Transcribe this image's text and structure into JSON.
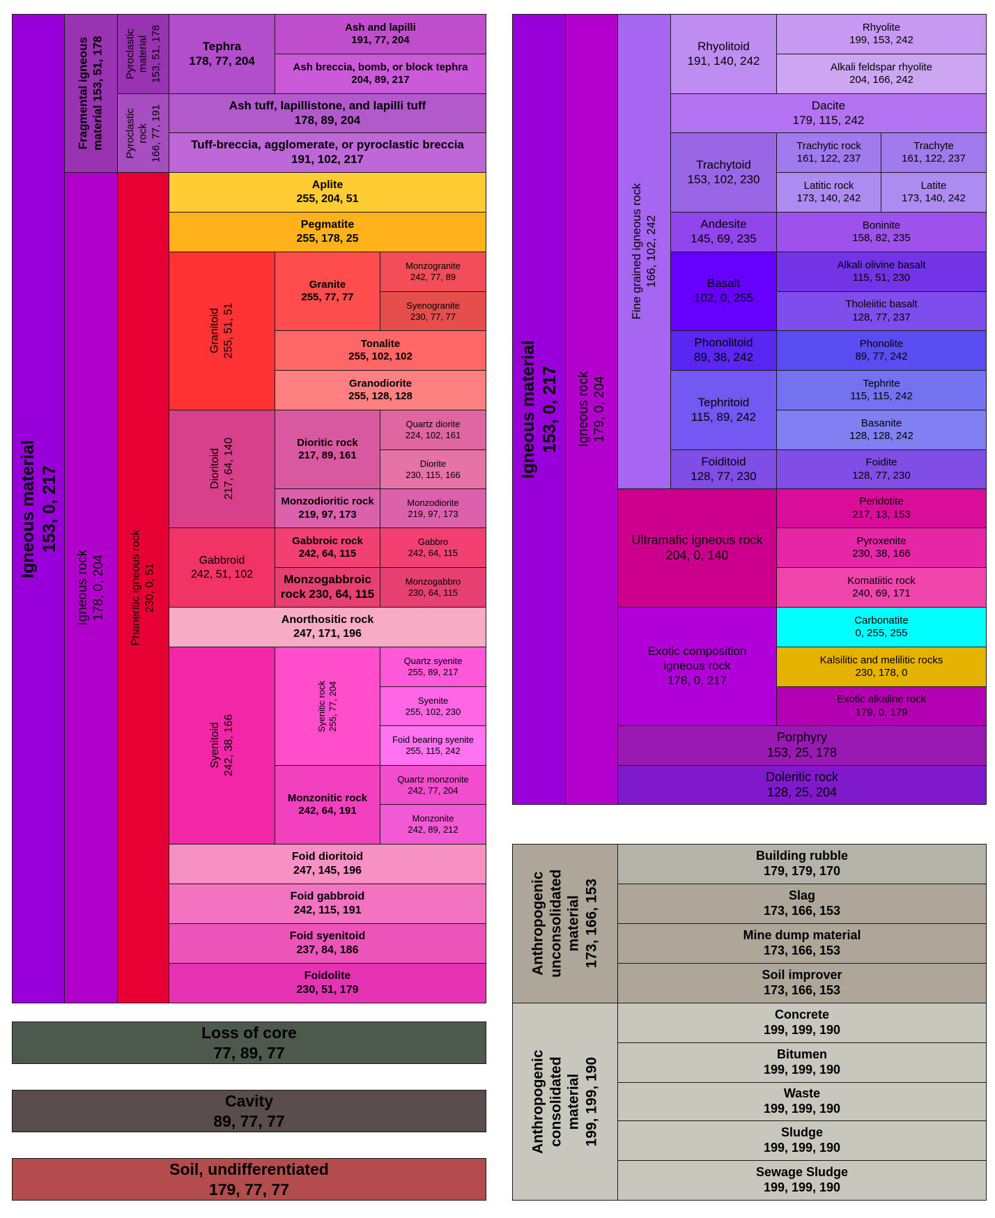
{
  "colors": {
    "border": "#1a1a1a",
    "background": "#ffffff"
  },
  "cells": [
    {
      "id": "igneous-material-left",
      "text": "Igneous material\n153, 0, 217",
      "color": "#9900D9"
    },
    {
      "id": "fragmental-igneous-material",
      "text": "Fragmental igneous\nmaterial 153, 51, 178",
      "color": "#9933B2"
    },
    {
      "id": "pyroclastic-material",
      "text": "Pyroclastic\nmaterial\n153, 51, 178",
      "color": "#9933B2"
    },
    {
      "id": "tephra",
      "text": "Tephra\n178, 77, 204",
      "color": "#B24DCC"
    },
    {
      "id": "ash-and-lapilli",
      "text": "Ash and lapilli\n191, 77, 204",
      "color": "#BF4DCC"
    },
    {
      "id": "ash-breccia",
      "text": "Ash breccia, bomb, or block tephra\n204, 89, 217",
      "color": "#CC59D9"
    },
    {
      "id": "pyroclastic-rock",
      "text": "Pyroclastic\nrock\n166, 77, 191",
      "color": "#A64DBF"
    },
    {
      "id": "ash-tuff",
      "text": "Ash tuff, lapillistone, and lapilli tuff\n178, 89, 204",
      "color": "#B259CC"
    },
    {
      "id": "tuff-breccia",
      "text": "Tuff-breccia, agglomerate, or pyroclastic breccia\n191, 102, 217",
      "color": "#BF66D9"
    },
    {
      "id": "igneous-rock-left",
      "text": "Igneous rock\n178, 0, 204",
      "color": "#B200CC"
    },
    {
      "id": "phaneritic-igneous-rock",
      "text": "Phaneritic igneous rock\n230, 0, 51",
      "color": "#E60033"
    },
    {
      "id": "aplite",
      "text": "Aplite\n255, 204, 51",
      "color": "#FFCC33"
    },
    {
      "id": "pegmatite",
      "text": "Pegmatite\n255, 178, 25",
      "color": "#FFB219"
    },
    {
      "id": "granitoid",
      "text": "Granitoid\n255, 51, 51",
      "color": "#FF3333"
    },
    {
      "id": "granite",
      "text": "Granite\n255, 77, 77",
      "color": "#FF4D4D"
    },
    {
      "id": "monzogranite",
      "text": "Monzogranite\n242, 77, 89",
      "color": "#F24D59"
    },
    {
      "id": "syenogranite",
      "text": "Syenogranite\n230, 77, 77",
      "color": "#E64D4D"
    },
    {
      "id": "tonalite",
      "text": "Tonalite\n255, 102, 102",
      "color": "#FF6666"
    },
    {
      "id": "granodiorite",
      "text": "Granodiorite\n255, 128, 128",
      "color": "#FF8080"
    },
    {
      "id": "dioritoid",
      "text": "Dioritoid\n217, 64, 140",
      "color": "#D9408C"
    },
    {
      "id": "dioritic-rock",
      "text": "Dioritic rock\n217, 89, 161",
      "color": "#D959A1"
    },
    {
      "id": "quartz-diorite",
      "text": "Quartz diorite\n224, 102, 161",
      "color": "#E066A1"
    },
    {
      "id": "diorite",
      "text": "Diorite\n230, 115, 166",
      "color": "#E673A6"
    },
    {
      "id": "monzodioritic-rock",
      "text": "Monzodioritic rock\n219, 97, 173",
      "color": "#DB61AD"
    },
    {
      "id": "monzodiorite",
      "text": "Monzodiorite\n219, 97, 173",
      "color": "#DB61AD"
    },
    {
      "id": "gabbroid",
      "text": "Gabbroid\n242, 51, 102",
      "color": "#F23366"
    },
    {
      "id": "gabbroic-rock",
      "text": "Gabbroic rock\n242, 64, 115",
      "color": "#F24073"
    },
    {
      "id": "gabbro",
      "text": "Gabbro\n242, 64, 115",
      "color": "#F24073"
    },
    {
      "id": "monzogabbroic-rock",
      "text": "Monzogabbroic\nrock  230, 64, 115",
      "color": "#E64073"
    },
    {
      "id": "monzogabbro",
      "text": "Monzogabbro\n230, 64, 115",
      "color": "#E64073"
    },
    {
      "id": "anorthositic-rock",
      "text": "Anorthositic rock\n247, 171, 196",
      "color": "#F7ABC4"
    },
    {
      "id": "syenitoid",
      "text": "Syenitoid\n242, 38, 166",
      "color": "#F226A6"
    },
    {
      "id": "syenitic-rock",
      "text": "Syenitic rock\n255, 77, 204",
      "color": "#FF4DCC"
    },
    {
      "id": "quartz-syenite",
      "text": "Quartz syenite\n255, 89, 217",
      "color": "#FF59D9"
    },
    {
      "id": "syenite",
      "text": "Syenite\n255, 102, 230",
      "color": "#FF66E6"
    },
    {
      "id": "foid-bearing-syenite",
      "text": "Foid bearing syenite\n255, 115, 242",
      "color": "#FF73F2"
    },
    {
      "id": "monzonitic-rock",
      "text": "Monzonitic rock\n242, 64, 191",
      "color": "#F240BF"
    },
    {
      "id": "quartz-monzonite",
      "text": "Quartz monzonite\n242, 77, 204",
      "color": "#F24DCC"
    },
    {
      "id": "monzonite",
      "text": "Monzonite\n242, 89, 212",
      "color": "#F259D4"
    },
    {
      "id": "foid-dioritoid",
      "text": "Foid dioritoid\n247, 145, 196",
      "color": "#F791C4"
    },
    {
      "id": "foid-gabbroid",
      "text": "Foid gabbroid\n242, 115, 191",
      "color": "#F273BF"
    },
    {
      "id": "foid-syenitoid",
      "text": "Foid syenitoid\n237, 84, 186",
      "color": "#ED54BA"
    },
    {
      "id": "foidolite",
      "text": "Foidolite\n230, 51, 179",
      "color": "#E633B3"
    },
    {
      "id": "loss-of-core",
      "text": "Loss of core\n77, 89, 77",
      "color": "#4D594D"
    },
    {
      "id": "cavity",
      "text": "Cavity\n89, 77, 77",
      "color": "#594D4D"
    },
    {
      "id": "soil-undifferentiated",
      "text": "Soil, undifferentiated\n179, 77, 77",
      "color": "#B34D4D"
    },
    {
      "id": "igneous-material-right",
      "text": "Igneous material\n153, 0, 217",
      "color": "#9900D9"
    },
    {
      "id": "igneous-rock-right",
      "text": "Igneous rock\n179, 0, 204",
      "color": "#B300CC"
    },
    {
      "id": "fine-grained-igneous-rock",
      "text": "Fine grained igneous rock\n166, 102, 242",
      "color": "#A666F2"
    },
    {
      "id": "rhyolitoid",
      "text": "Rhyolitoid\n191, 140, 242",
      "color": "#BF8CF2"
    },
    {
      "id": "rhyolite",
      "text": "Rhyolite\n199, 153, 242",
      "color": "#C799F2"
    },
    {
      "id": "alkali-feldspar-rhyolite",
      "text": "Alkali feldspar rhyolite\n204, 166, 242",
      "color": "#CCA6F2"
    },
    {
      "id": "dacite",
      "text": "Dacite\n179, 115, 242",
      "color": "#B373F2"
    },
    {
      "id": "trachytoid",
      "text": "Trachytoid\n153, 102, 230",
      "color": "#9966E6"
    },
    {
      "id": "trachytic-rock",
      "text": "Trachytic rock\n161, 122, 237",
      "color": "#A17AED"
    },
    {
      "id": "trachyte",
      "text": "Trachyte\n161, 122, 237",
      "color": "#A17AED"
    },
    {
      "id": "latitic-rock",
      "text": "Latitic rock\n173, 140, 242",
      "color": "#AD8CF2"
    },
    {
      "id": "latite",
      "text": "Latite\n173, 140, 242",
      "color": "#AD8CF2"
    },
    {
      "id": "andesite",
      "text": "Andesite\n145, 69, 235",
      "color": "#9145EB"
    },
    {
      "id": "boninite",
      "text": "Boninite\n158, 82, 235",
      "color": "#9E52EB"
    },
    {
      "id": "basalt",
      "text": "Basalt\n102, 0, 255",
      "color": "#6600FF"
    },
    {
      "id": "alkali-olivine-basalt",
      "text": "Alkali olivine basalt\n115, 51, 230",
      "color": "#7333E6"
    },
    {
      "id": "tholeiitic-basalt",
      "text": "Tholeiitic basalt\n128, 77, 237",
      "color": "#804DED"
    },
    {
      "id": "phonolitoid",
      "text": "Phonolitoid\n89, 38, 242",
      "color": "#5926F2"
    },
    {
      "id": "phonolite",
      "text": "Phonolite\n89, 77, 242",
      "color": "#594DF2"
    },
    {
      "id": "tephritoid",
      "text": "Tephritoid\n115, 89, 242",
      "color": "#7359F2"
    },
    {
      "id": "tephrite",
      "text": "Tephrite\n115, 115, 242",
      "color": "#7373F2"
    },
    {
      "id": "basanite",
      "text": "Basanite\n128, 128, 242",
      "color": "#8080F2"
    },
    {
      "id": "foiditoid",
      "text": "Foiditoid\n128, 77, 230",
      "color": "#804DE6"
    },
    {
      "id": "foidite",
      "text": "Foidite\n128, 77, 230",
      "color": "#804DE6"
    },
    {
      "id": "ultramafic-igneous-rock",
      "text": "Ultramafic igneous rock\n204, 0, 140",
      "color": "#CC008C"
    },
    {
      "id": "peridotite",
      "text": "Peridotite\n217, 13, 153",
      "color": "#D90D99"
    },
    {
      "id": "pyroxenite",
      "text": "Pyroxenite\n230, 38, 166",
      "color": "#E626A6"
    },
    {
      "id": "komatiitic-rock",
      "text": "Komatiitic rock\n240, 69, 171",
      "color": "#F045AB"
    },
    {
      "id": "exotic-composition-igneous-rock",
      "text": "Exotic composition\nigneous rock\n178, 0, 217",
      "color": "#B200D9"
    },
    {
      "id": "carbonatite",
      "text": "Carbonatite\n0, 255, 255",
      "color": "#00FFFF"
    },
    {
      "id": "kalsilitic-melilitic-rocks",
      "text": "Kalsilitic and melilitic rocks\n230, 178, 0",
      "color": "#E6B200"
    },
    {
      "id": "exotic-alkaline-rock",
      "text": "Exotic alkaline rock\n179, 0, 179",
      "color": "#B300B3"
    },
    {
      "id": "porphyry",
      "text": "Porphyry\n153, 25, 178",
      "color": "#9919B2"
    },
    {
      "id": "doleritic-rock",
      "text": "Doleritic rock\n128, 25, 204",
      "color": "#8019CC"
    },
    {
      "id": "anthropogenic-unconsolidated-material",
      "text": "Anthropogenic\nunconsolidated\nmaterial\n173, 166, 153",
      "color": "#ADA699"
    },
    {
      "id": "building-rubble",
      "text": "Building rubble\n179, 179, 170",
      "color": "#B3B3AA"
    },
    {
      "id": "slag",
      "text": "Slag\n173, 166, 153",
      "color": "#ADA699"
    },
    {
      "id": "mine-dump-material",
      "text": "Mine dump material\n173, 166, 153",
      "color": "#ADA699"
    },
    {
      "id": "soil-improver",
      "text": "Soil improver\n173, 166, 153",
      "color": "#ADA699"
    },
    {
      "id": "anthropogenic-consolidated-material",
      "text": "Anthropogenic\nconsolidated\nmaterial\n199, 199, 190",
      "color": "#C7C7BE"
    },
    {
      "id": "concrete",
      "text": "Concrete\n199, 199, 190",
      "color": "#C7C7BE"
    },
    {
      "id": "bitumen",
      "text": "Bitumen\n199, 199, 190",
      "color": "#C7C7BE"
    },
    {
      "id": "waste",
      "text": "Waste\n199, 199, 190",
      "color": "#C7C7BE"
    },
    {
      "id": "sludge",
      "text": "Sludge\n199, 199, 190",
      "color": "#C7C7BE"
    },
    {
      "id": "sewage-sludge",
      "text": "Sewage Sludge\n199, 199, 190",
      "color": "#C7C7BE"
    }
  ]
}
